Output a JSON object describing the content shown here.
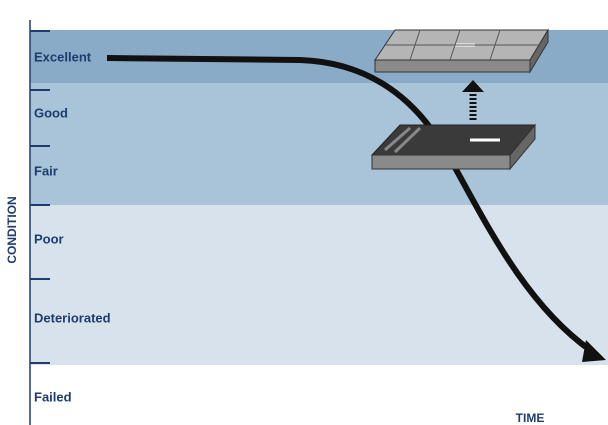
{
  "axis": {
    "y_label": "CONDITION",
    "x_label": "TIME"
  },
  "levels": [
    "Excellent",
    "Good",
    "Fair",
    "Poor",
    "Deteriorated",
    "Failed"
  ]
}
